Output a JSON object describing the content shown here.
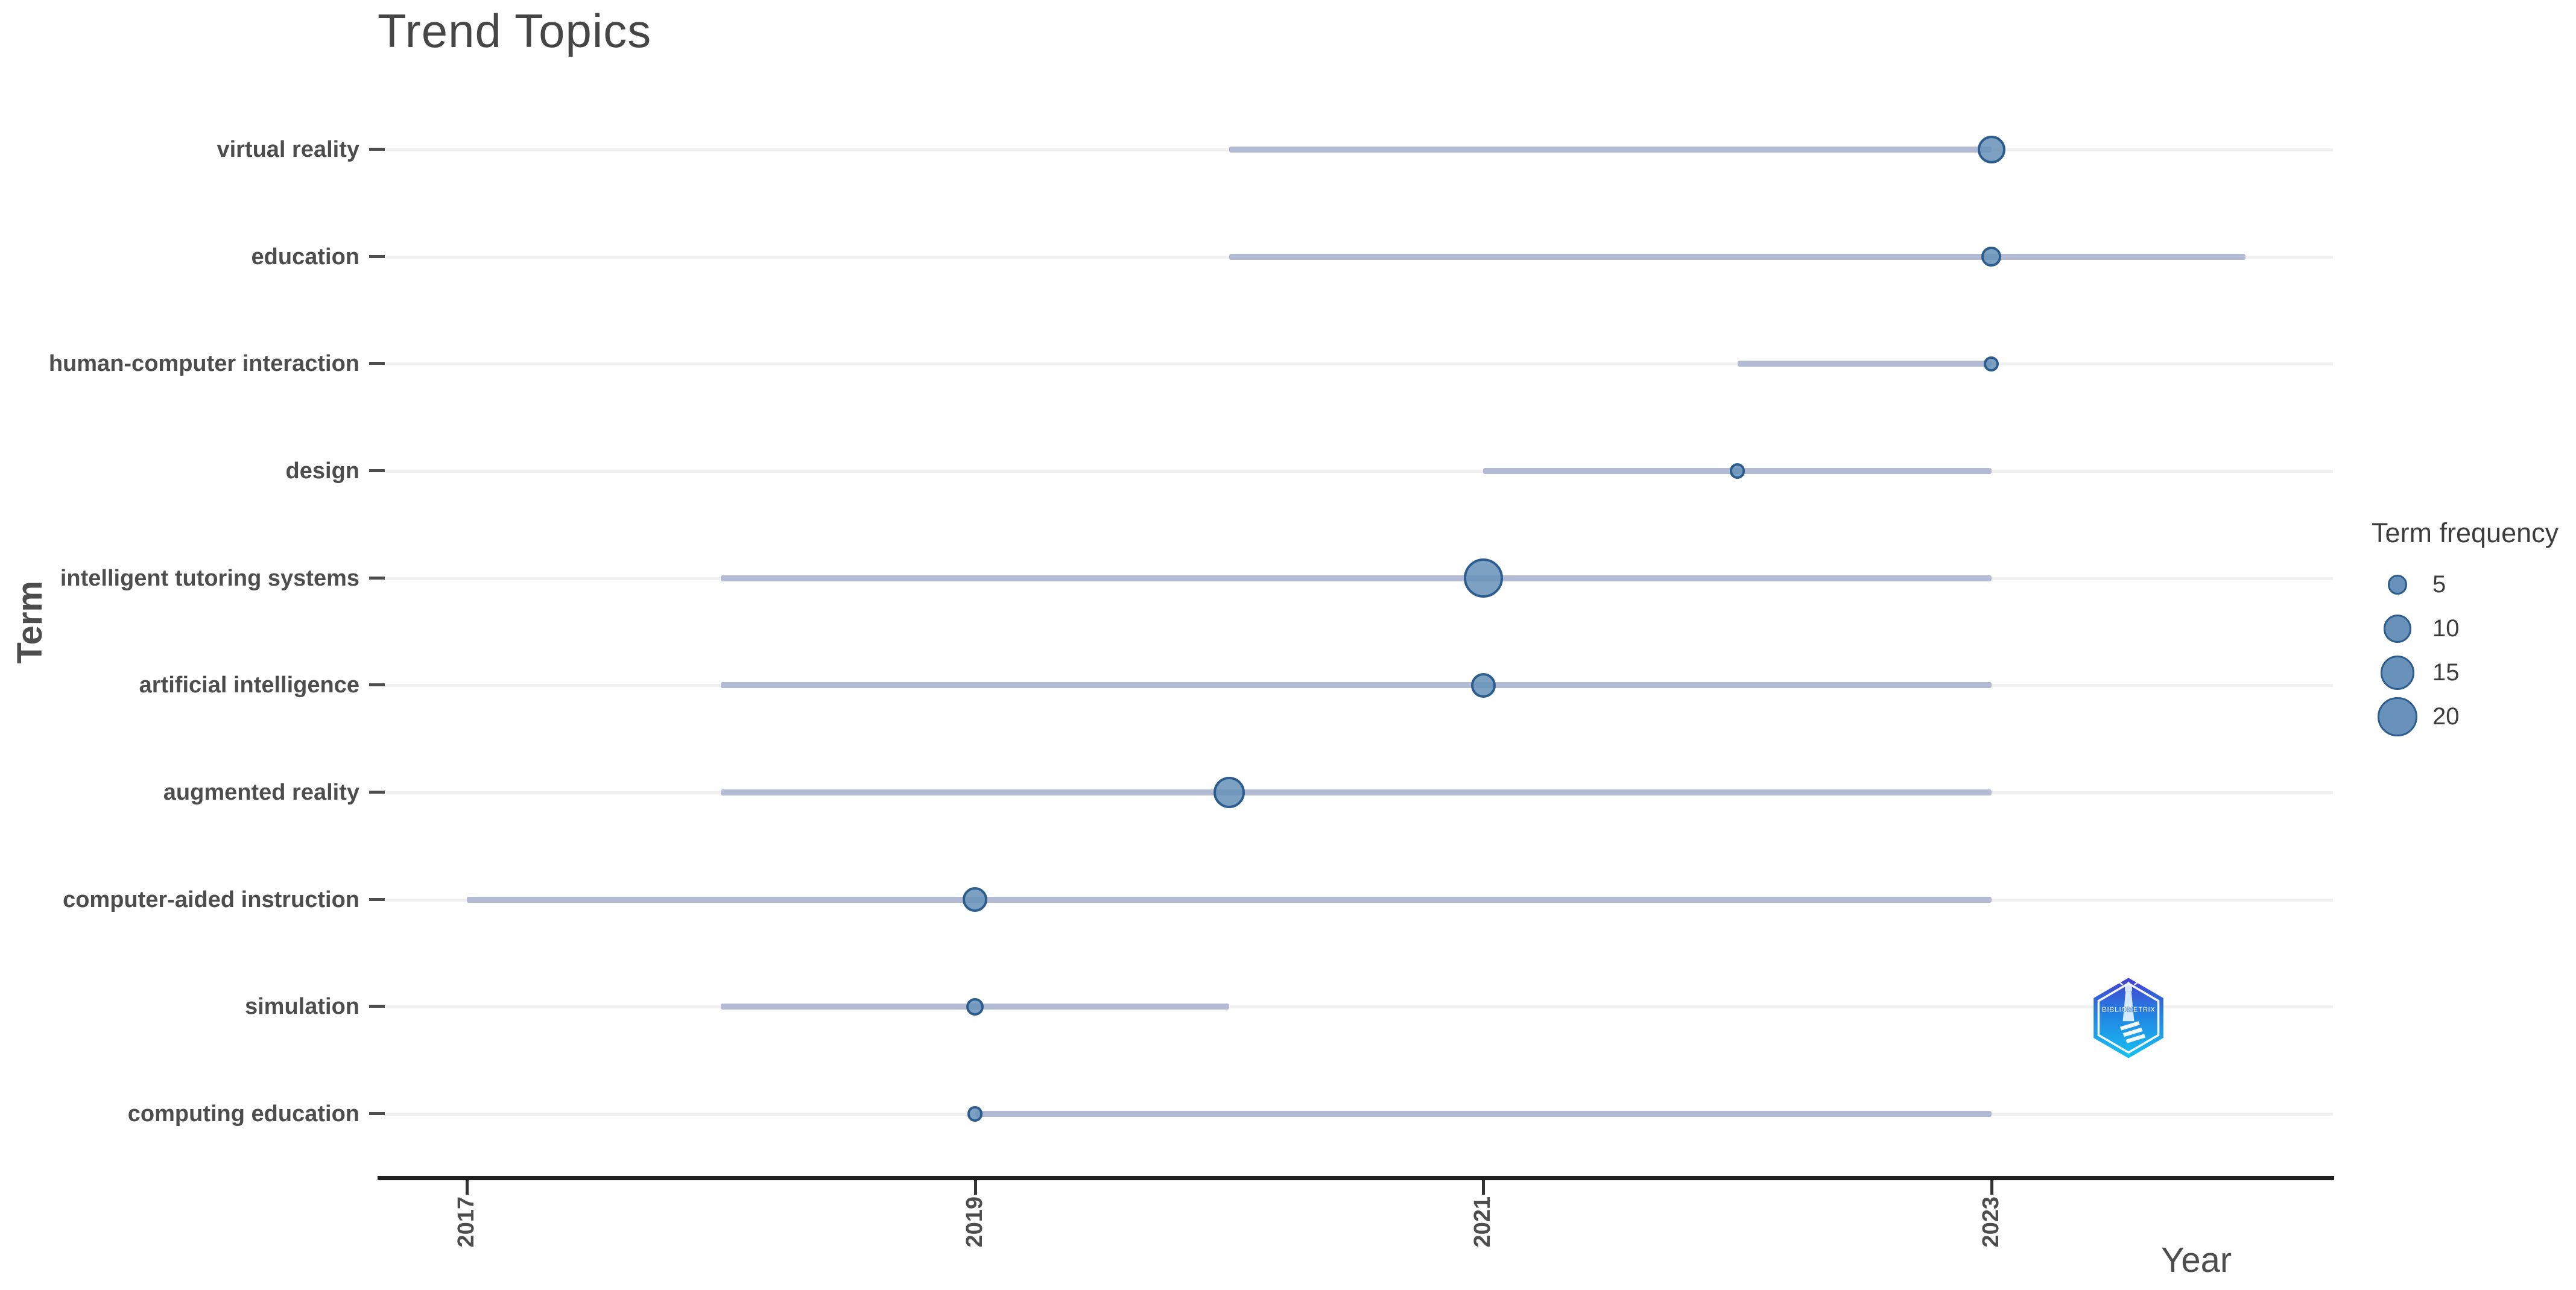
{
  "title": "Trend Topics",
  "x_axis": {
    "label": "Year",
    "ticks": [
      2017,
      2019,
      2021,
      2023
    ]
  },
  "y_axis": {
    "label": "Term"
  },
  "legend": {
    "title": "Term frequency",
    "sizes": [
      5,
      10,
      15,
      20
    ],
    "position": "right"
  },
  "watermark": {
    "text": "BIBLIOMETRIX"
  },
  "colors": {
    "dot_fill": "#6892ba",
    "dot_stroke": "#2c5d8e",
    "range_line": "#b3bad4",
    "grid_line": "#f0f0f0",
    "axis_line": "#1f1f1f",
    "title_text": "#464646",
    "label_text": "#4d4d4d",
    "legend_text": "#3d3d3d",
    "logo_top": "#463fd0",
    "logo_bottom": "#16c2f2"
  },
  "chart_data": {
    "type": "scatter",
    "subtype": "trend-topics-range-bubble",
    "title": "Trend Topics",
    "xlabel": "Year",
    "ylabel": "Term",
    "xlim": [
      2016.7,
      2024.35
    ],
    "grid": "horizontal-only",
    "legend_position": "right",
    "size_legend": {
      "title": "Term frequency",
      "values": [
        5,
        10,
        15,
        20
      ]
    },
    "rows": [
      {
        "term": "virtual reality",
        "year_start": 2020,
        "year_end": 2023,
        "year_peak": 2023,
        "frequency": 10
      },
      {
        "term": "education",
        "year_start": 2020,
        "year_end": 2024,
        "year_peak": 2023,
        "frequency": 5
      },
      {
        "term": "human-computer interaction",
        "year_start": 2022,
        "year_end": 2023,
        "year_peak": 2023,
        "frequency": 3
      },
      {
        "term": "design",
        "year_start": 2021,
        "year_end": 2023,
        "year_peak": 2022,
        "frequency": 3
      },
      {
        "term": "intelligent tutoring systems",
        "year_start": 2018,
        "year_end": 2023,
        "year_peak": 2021,
        "frequency": 20
      },
      {
        "term": "artificial intelligence",
        "year_start": 2018,
        "year_end": 2023,
        "year_peak": 2021,
        "frequency": 8
      },
      {
        "term": "augmented reality",
        "year_start": 2018,
        "year_end": 2023,
        "year_peak": 2020,
        "frequency": 13
      },
      {
        "term": "computer-aided instruction",
        "year_start": 2017,
        "year_end": 2023,
        "year_peak": 2019,
        "frequency": 8
      },
      {
        "term": "simulation",
        "year_start": 2018,
        "year_end": 2020,
        "year_peak": 2019,
        "frequency": 4
      },
      {
        "term": "computing education",
        "year_start": 2019,
        "year_end": 2023,
        "year_peak": 2019,
        "frequency": 3
      }
    ]
  }
}
